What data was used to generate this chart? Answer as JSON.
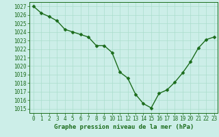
{
  "x": [
    0,
    1,
    2,
    3,
    4,
    5,
    6,
    7,
    8,
    9,
    10,
    11,
    12,
    13,
    14,
    15,
    16,
    17,
    18,
    19,
    20,
    21,
    22,
    23
  ],
  "y": [
    1027.0,
    1026.2,
    1025.8,
    1025.3,
    1024.3,
    1024.0,
    1023.7,
    1023.4,
    1022.4,
    1022.4,
    1021.6,
    1019.3,
    1018.6,
    1016.7,
    1015.6,
    1015.1,
    1016.8,
    1017.2,
    1018.1,
    1019.2,
    1020.5,
    1022.1,
    1023.1,
    1023.4
  ],
  "line_color": "#1a6b1a",
  "marker_color": "#1a6b1a",
  "bg_plot": "#cceee8",
  "bg_fig": "#cceee8",
  "grid_color": "#aaddcc",
  "xlabel": "Graphe pression niveau de la mer (hPa)",
  "xlabel_color": "#1a6b1a",
  "ylabel_ticks": [
    1015,
    1016,
    1017,
    1018,
    1019,
    1020,
    1021,
    1022,
    1023,
    1024,
    1025,
    1026,
    1027
  ],
  "ylim": [
    1014.5,
    1027.5
  ],
  "xlim": [
    -0.5,
    23.5
  ],
  "xticks": [
    0,
    1,
    2,
    3,
    4,
    5,
    6,
    7,
    8,
    9,
    10,
    11,
    12,
    13,
    14,
    15,
    16,
    17,
    18,
    19,
    20,
    21,
    22,
    23
  ],
  "xlabel_fontsize": 6.5,
  "tick_fontsize": 5.5,
  "line_width": 1.0,
  "marker_size": 2.5
}
